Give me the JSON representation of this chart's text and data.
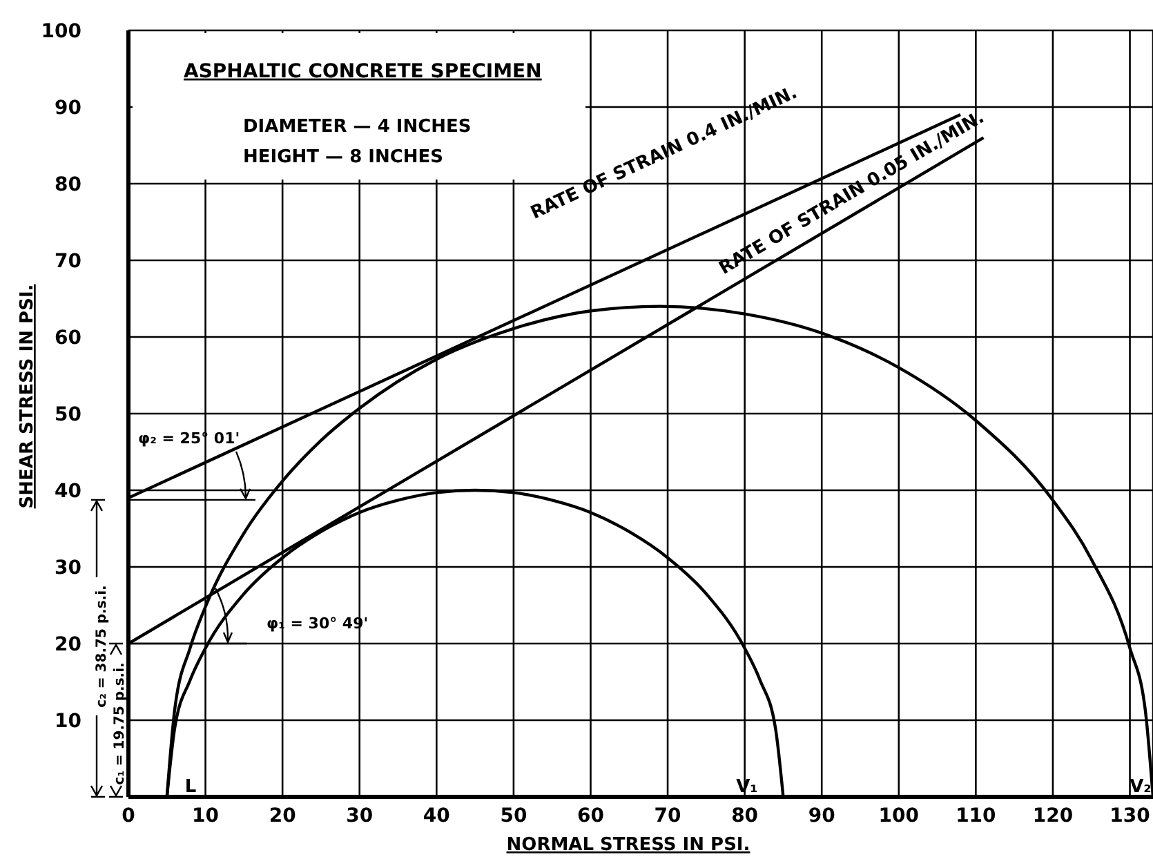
{
  "chart_data": {
    "type": "line",
    "xlabel": "NORMAL STRESS IN PSI.",
    "ylabel": "SHEAR STRESS IN PSI.",
    "xlim": [
      0,
      133
    ],
    "ylim": [
      0,
      100
    ],
    "xticks": [
      0,
      10,
      20,
      30,
      40,
      50,
      60,
      70,
      80,
      90,
      100,
      110,
      120,
      130
    ],
    "yticks": [
      {
        "value": 0,
        "label": null
      },
      10,
      20,
      30,
      40,
      50,
      60,
      70,
      80,
      90,
      100
    ],
    "grid": true,
    "marker": "none",
    "line_style": "solid",
    "annotations": [
      "ASPHALTIC CONCRETE SPECIMEN",
      "DIAMETER — 4 INCHES",
      "HEIGHT — 8 INCHES",
      "RATE OF STRAIN 0.4 IN./MIN.",
      "RATE OF STRAIN 0.05 IN./MIN.",
      "φ₂ = 25° 01'",
      "φ₁ = 30° 49'",
      "c₂ = 38.75 p.s.i.",
      "c₁ = 19.75 p.s.i.",
      "L",
      "V₁",
      "V₂"
    ],
    "series": [
      {
        "color": "#000000",
        "x": [
          5,
          6,
          8,
          10,
          15,
          20,
          25,
          30,
          35,
          40,
          45,
          50,
          55,
          60,
          65,
          70,
          75,
          80,
          82,
          84,
          85
        ],
        "values": [
          0,
          8.9,
          15.2,
          19.4,
          26.5,
          31.2,
          34.6,
          37.1,
          38.7,
          39.7,
          40,
          39.7,
          38.7,
          37.1,
          34.6,
          31.2,
          26.5,
          19.4,
          15.2,
          8.9,
          0
        ]
      },
      {
        "color": "#000000",
        "x": [
          5,
          6,
          8,
          10,
          15,
          20,
          25,
          30,
          40,
          50,
          60,
          69,
          80,
          90,
          100,
          110,
          120,
          125,
          130,
          132,
          133
        ],
        "values": [
          0,
          11.3,
          19.4,
          24.8,
          34.4,
          41.2,
          46.5,
          50.7,
          57.1,
          61.1,
          63.4,
          64,
          63,
          60.5,
          56,
          49.1,
          38.7,
          31,
          19.4,
          11.3,
          0
        ]
      },
      {
        "color": "#000000",
        "x": [
          0,
          108
        ],
        "values": [
          39,
          89
        ]
      },
      {
        "color": "#000000",
        "x": [
          0,
          111
        ],
        "values": [
          20,
          86
        ]
      }
    ]
  }
}
